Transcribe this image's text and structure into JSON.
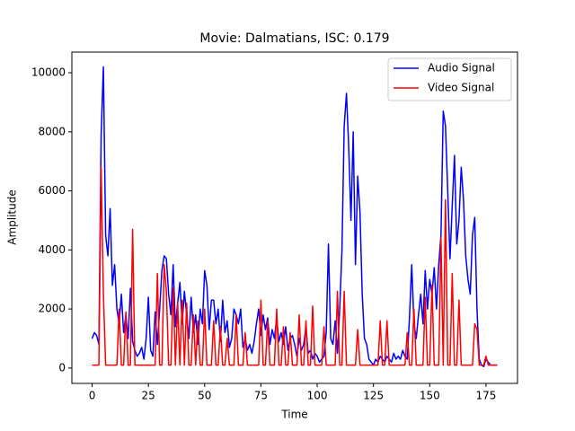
{
  "chart_data": {
    "type": "line",
    "title": "Movie: Dalmatians, ISC: 0.179",
    "xlabel": "Time",
    "ylabel": "Amplitude",
    "xlim": [
      -9,
      189
    ],
    "ylim": [
      -520,
      10700
    ],
    "xticks": [
      0,
      25,
      50,
      75,
      100,
      125,
      150,
      175
    ],
    "yticks": [
      0,
      2000,
      4000,
      6000,
      8000,
      10000
    ],
    "legend": "upper right",
    "x": [
      0,
      1,
      2,
      3,
      4,
      5,
      6,
      7,
      8,
      9,
      10,
      11,
      12,
      13,
      14,
      15,
      16,
      17,
      18,
      19,
      20,
      21,
      22,
      23,
      24,
      25,
      26,
      27,
      28,
      29,
      30,
      31,
      32,
      33,
      34,
      35,
      36,
      37,
      38,
      39,
      40,
      41,
      42,
      43,
      44,
      45,
      46,
      47,
      48,
      49,
      50,
      51,
      52,
      53,
      54,
      55,
      56,
      57,
      58,
      59,
      60,
      61,
      62,
      63,
      64,
      65,
      66,
      67,
      68,
      69,
      70,
      71,
      72,
      73,
      74,
      75,
      76,
      77,
      78,
      79,
      80,
      81,
      82,
      83,
      84,
      85,
      86,
      87,
      88,
      89,
      90,
      91,
      92,
      93,
      94,
      95,
      96,
      97,
      98,
      99,
      100,
      101,
      102,
      103,
      104,
      105,
      106,
      107,
      108,
      109,
      110,
      111,
      112,
      113,
      114,
      115,
      116,
      117,
      118,
      119,
      120,
      121,
      122,
      123,
      124,
      125,
      126,
      127,
      128,
      129,
      130,
      131,
      132,
      133,
      134,
      135,
      136,
      137,
      138,
      139,
      140,
      141,
      142,
      143,
      144,
      145,
      146,
      147,
      148,
      149,
      150,
      151,
      152,
      153,
      154,
      155,
      156,
      157,
      158,
      159,
      160,
      161,
      162,
      163,
      164,
      165,
      166,
      167,
      168,
      169,
      170,
      171,
      172,
      173,
      174,
      175,
      176,
      177,
      178,
      179,
      180
    ],
    "series": [
      {
        "name": "Audio Signal",
        "color": "#0000ff",
        "values": [
          1000,
          1200,
          1100,
          800,
          7900,
          10200,
          4500,
          3800,
          5400,
          2800,
          3500,
          2000,
          1500,
          2500,
          1200,
          1800,
          1000,
          2700,
          900,
          600,
          400,
          500,
          700,
          300,
          1000,
          2400,
          600,
          400,
          1900,
          800,
          2000,
          3300,
          3800,
          3700,
          2500,
          1800,
          3500,
          1400,
          2200,
          2900,
          1500,
          2600,
          1800,
          1000,
          2400,
          1200,
          1800,
          800,
          2000,
          1500,
          3300,
          2800,
          1300,
          2300,
          2300,
          1500,
          2000,
          900,
          2300,
          1200,
          1600,
          700,
          1000,
          2000,
          1800,
          1500,
          2000,
          700,
          1000,
          600,
          800,
          500,
          900,
          1500,
          2000,
          1100,
          1800,
          1300,
          1700,
          800,
          1300,
          1000,
          1700,
          900,
          1200,
          800,
          1400,
          600,
          1000,
          1100,
          800,
          400,
          1000,
          600,
          800,
          1400,
          500,
          600,
          300,
          500,
          400,
          200,
          300,
          400,
          1200,
          4200,
          1000,
          800,
          1600,
          500,
          2000,
          4000,
          8200,
          9300,
          7500,
          5000,
          8000,
          3500,
          6500,
          5300,
          2500,
          1000,
          800,
          300,
          200,
          100,
          300,
          200,
          400,
          300,
          200,
          400,
          300,
          200,
          500,
          300,
          400,
          300,
          600,
          400,
          300,
          1700,
          3500,
          1500,
          1000,
          1800,
          2500,
          1500,
          3300,
          2000,
          3000,
          2500,
          3400,
          2000,
          3500,
          4500,
          8700,
          8200,
          6000,
          3700,
          5500,
          7200,
          4200,
          5000,
          6800,
          5700,
          3800,
          3000,
          2500,
          4500,
          5100,
          2000,
          300,
          100,
          50,
          300,
          200,
          100,
          100,
          100,
          100
        ]
      },
      {
        "name": "Video Signal",
        "color": "#ff0000",
        "values": [
          100,
          100,
          100,
          100,
          6800,
          2500,
          100,
          100,
          100,
          100,
          100,
          100,
          2000,
          100,
          100,
          1900,
          100,
          100,
          4700,
          100,
          100,
          100,
          100,
          100,
          100,
          100,
          100,
          100,
          100,
          3200,
          100,
          100,
          3500,
          2600,
          100,
          100,
          2700,
          100,
          2200,
          100,
          2300,
          100,
          2200,
          100,
          100,
          1800,
          100,
          1600,
          100,
          100,
          2000,
          100,
          100,
          100,
          1600,
          100,
          100,
          1400,
          100,
          100,
          1000,
          100,
          100,
          100,
          1800,
          100,
          100,
          100,
          1200,
          100,
          100,
          100,
          100,
          100,
          100,
          2300,
          100,
          100,
          1600,
          100,
          100,
          100,
          2000,
          100,
          100,
          1400,
          100,
          100,
          1200,
          100,
          100,
          100,
          1800,
          100,
          100,
          1600,
          100,
          100,
          2100,
          100,
          100,
          100,
          100,
          1400,
          100,
          100,
          100,
          100,
          100,
          2600,
          100,
          100,
          2600,
          100,
          100,
          100,
          100,
          100,
          1300,
          100,
          100,
          100,
          100,
          100,
          100,
          100,
          100,
          100,
          1600,
          100,
          100,
          1600,
          100,
          100,
          100,
          100,
          100,
          100,
          100,
          100,
          1200,
          100,
          100,
          2000,
          100,
          100,
          100,
          100,
          2400,
          100,
          100,
          2800,
          100,
          100,
          100,
          4400,
          100,
          5700,
          100,
          100,
          3200,
          100,
          100,
          2300,
          100,
          100,
          100,
          100,
          100,
          100,
          1500,
          1300,
          100,
          100,
          100,
          400,
          100,
          100,
          100,
          100,
          100
        ]
      }
    ]
  }
}
